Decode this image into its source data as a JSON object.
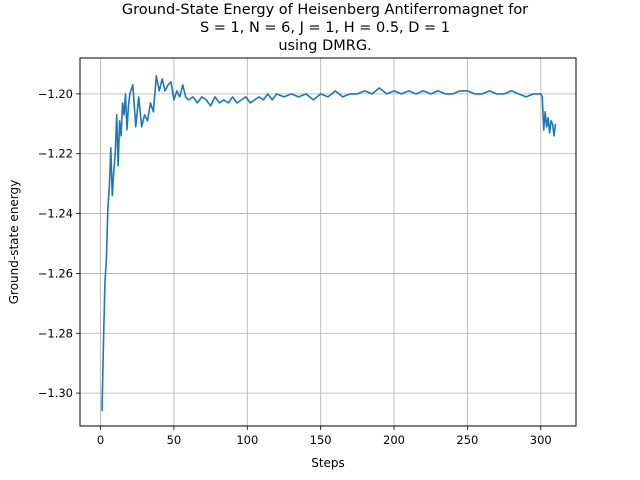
{
  "chart_data": {
    "type": "line",
    "title_lines": [
      "Ground-State Energy of Heisenberg Antiferromagnet for",
      "S = 1, N = 6, J = 1, H = 0.5, D = 1",
      "using DMRG."
    ],
    "xlabel": "Steps",
    "ylabel": "Ground-state energy",
    "xlim": [
      -14,
      324
    ],
    "ylim": [
      -1.311,
      -1.188
    ],
    "xticks": [
      0,
      50,
      100,
      150,
      200,
      250,
      300
    ],
    "yticks": [
      -1.3,
      -1.28,
      -1.26,
      -1.24,
      -1.22,
      -1.2
    ],
    "ytick_labels": [
      "−1.30",
      "−1.28",
      "−1.26",
      "−1.24",
      "−1.22",
      "−1.20"
    ],
    "grid": true,
    "line_color": "#1f77b4",
    "series": [
      {
        "x": [
          1,
          2,
          3,
          4,
          5,
          6,
          7,
          8,
          9,
          10,
          11,
          12,
          13,
          14,
          15,
          16,
          17,
          18,
          19,
          20,
          22,
          24,
          26,
          28,
          30,
          32,
          34,
          36,
          38,
          40,
          42,
          44,
          46,
          48,
          50,
          52,
          54,
          56,
          58,
          60,
          63,
          66,
          69,
          72,
          75,
          78,
          81,
          84,
          87,
          90,
          93,
          96,
          99,
          102,
          105,
          108,
          111,
          114,
          117,
          120,
          125,
          130,
          135,
          140,
          145,
          150,
          155,
          160,
          165,
          170,
          175,
          180,
          185,
          190,
          195,
          200,
          205,
          210,
          215,
          220,
          225,
          230,
          235,
          240,
          245,
          250,
          255,
          260,
          265,
          270,
          275,
          280,
          285,
          290,
          295,
          300,
          301,
          302,
          303,
          304,
          305,
          306,
          307,
          308,
          309,
          310
        ],
        "y": [
          -1.306,
          -1.283,
          -1.263,
          -1.255,
          -1.238,
          -1.231,
          -1.218,
          -1.234,
          -1.226,
          -1.22,
          -1.207,
          -1.224,
          -1.209,
          -1.214,
          -1.203,
          -1.207,
          -1.2,
          -1.212,
          -1.204,
          -1.2,
          -1.197,
          -1.211,
          -1.201,
          -1.211,
          -1.207,
          -1.209,
          -1.203,
          -1.206,
          -1.194,
          -1.199,
          -1.195,
          -1.199,
          -1.197,
          -1.196,
          -1.202,
          -1.199,
          -1.201,
          -1.197,
          -1.201,
          -1.202,
          -1.201,
          -1.203,
          -1.201,
          -1.202,
          -1.204,
          -1.201,
          -1.203,
          -1.202,
          -1.203,
          -1.201,
          -1.203,
          -1.202,
          -1.201,
          -1.203,
          -1.202,
          -1.201,
          -1.202,
          -1.2,
          -1.202,
          -1.2,
          -1.201,
          -1.2,
          -1.201,
          -1.2,
          -1.202,
          -1.2,
          -1.201,
          -1.199,
          -1.201,
          -1.2,
          -1.2,
          -1.199,
          -1.2,
          -1.198,
          -1.2,
          -1.199,
          -1.2,
          -1.199,
          -1.2,
          -1.199,
          -1.2,
          -1.199,
          -1.2,
          -1.2,
          -1.199,
          -1.199,
          -1.2,
          -1.2,
          -1.199,
          -1.2,
          -1.2,
          -1.199,
          -1.2,
          -1.201,
          -1.2,
          -1.2,
          -1.201,
          -1.212,
          -1.206,
          -1.211,
          -1.208,
          -1.213,
          -1.209,
          -1.21,
          -1.214,
          -1.21
        ]
      }
    ]
  }
}
